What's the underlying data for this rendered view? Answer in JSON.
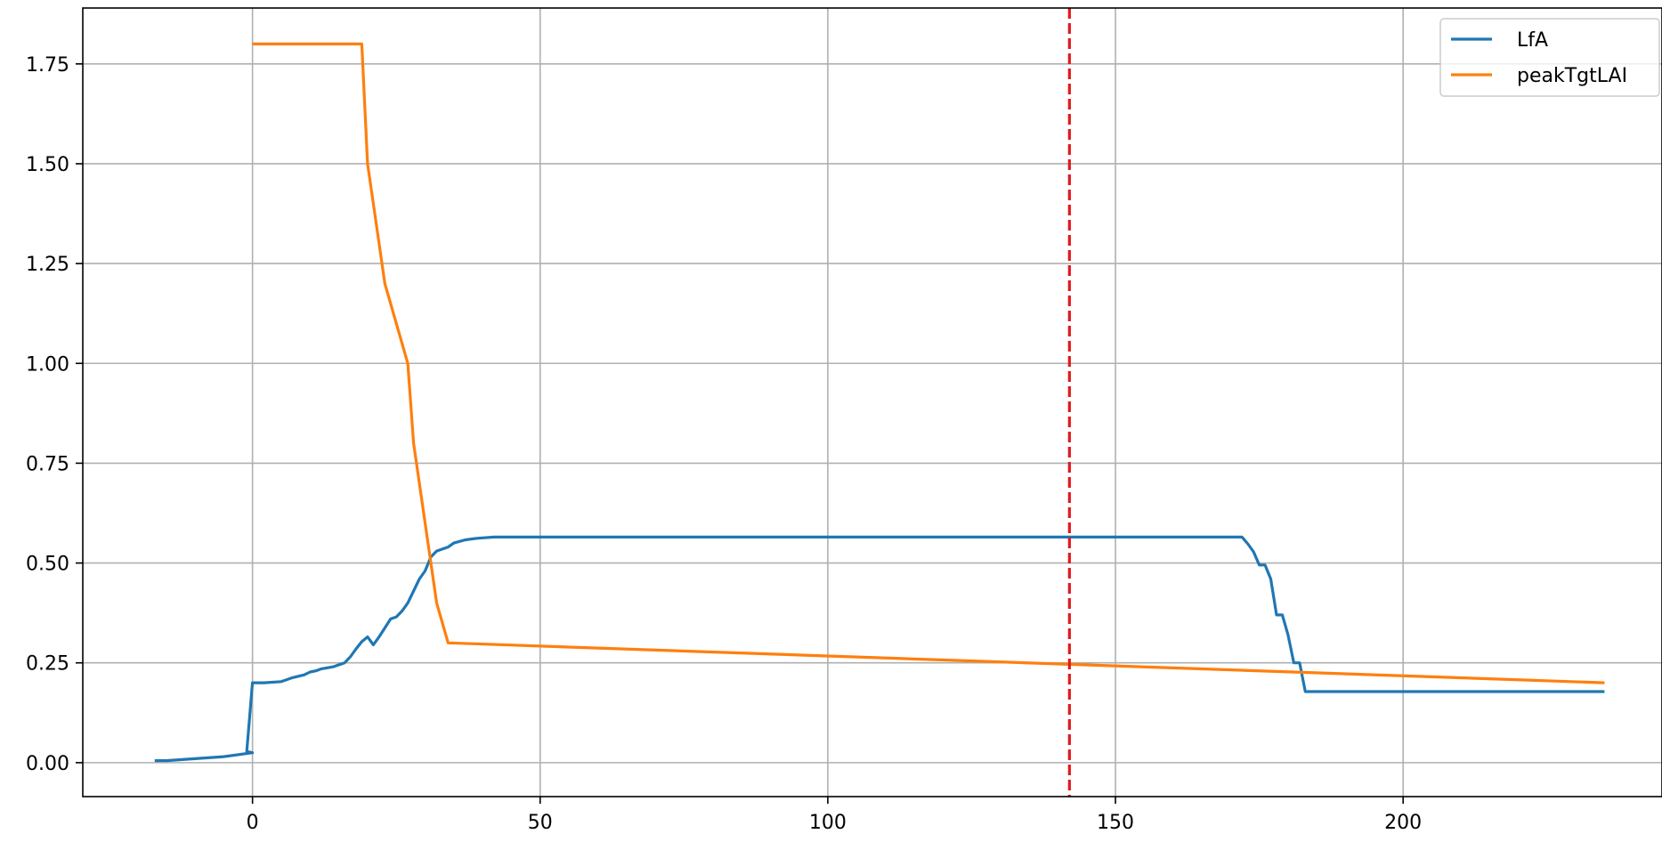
{
  "chart_data": {
    "type": "line",
    "title": "",
    "xlabel": "",
    "ylabel": "",
    "xlim": [
      -29.5,
      245
    ],
    "ylim": [
      -0.085,
      1.89
    ],
    "xticks": [
      0,
      50,
      100,
      150,
      200
    ],
    "yticks": [
      0.0,
      0.25,
      0.5,
      0.75,
      1.0,
      1.25,
      1.5,
      1.75
    ],
    "xtick_labels": [
      "0",
      "50",
      "100",
      "150",
      "200"
    ],
    "ytick_labels": [
      "0.00",
      "0.25",
      "0.50",
      "0.75",
      "1.00",
      "1.25",
      "1.50",
      "1.75"
    ],
    "grid": true,
    "legend_position": "top-right",
    "vline": {
      "x": 142,
      "color": "#e31a1c",
      "style": "dashed"
    },
    "series": [
      {
        "name": "LfA",
        "color": "#1f77b4",
        "points": [
          [
            -17,
            0.005
          ],
          [
            -15,
            0.005
          ],
          [
            -10,
            0.01
          ],
          [
            -5,
            0.015
          ],
          [
            0,
            0.025
          ],
          [
            -1,
            0.028
          ],
          [
            0,
            0.2
          ],
          [
            2,
            0.2
          ],
          [
            5,
            0.203
          ],
          [
            7,
            0.213
          ],
          [
            9,
            0.22
          ],
          [
            10,
            0.227
          ],
          [
            11,
            0.23
          ],
          [
            12,
            0.235
          ],
          [
            14,
            0.24
          ],
          [
            16,
            0.25
          ],
          [
            17,
            0.265
          ],
          [
            18,
            0.285
          ],
          [
            19,
            0.303
          ],
          [
            20,
            0.315
          ],
          [
            21,
            0.295
          ],
          [
            22,
            0.315
          ],
          [
            24,
            0.36
          ],
          [
            25,
            0.365
          ],
          [
            26,
            0.38
          ],
          [
            27,
            0.4
          ],
          [
            28,
            0.43
          ],
          [
            29,
            0.46
          ],
          [
            30,
            0.48
          ],
          [
            31,
            0.515
          ],
          [
            32,
            0.53
          ],
          [
            33,
            0.535
          ],
          [
            34,
            0.54
          ],
          [
            35,
            0.55
          ],
          [
            37,
            0.558
          ],
          [
            39,
            0.562
          ],
          [
            42,
            0.565
          ],
          [
            50,
            0.565
          ],
          [
            100,
            0.565
          ],
          [
            150,
            0.565
          ],
          [
            172,
            0.565
          ],
          [
            173,
            0.548
          ],
          [
            174,
            0.528
          ],
          [
            175,
            0.495
          ],
          [
            176,
            0.495
          ],
          [
            177,
            0.46
          ],
          [
            178,
            0.37
          ],
          [
            179,
            0.37
          ],
          [
            180,
            0.32
          ],
          [
            181,
            0.25
          ],
          [
            182,
            0.25
          ],
          [
            183,
            0.178
          ],
          [
            200,
            0.178
          ],
          [
            235,
            0.178
          ]
        ]
      },
      {
        "name": "peakTgtLAI",
        "color": "#ff7f0e",
        "points": [
          [
            0,
            1.8
          ],
          [
            19,
            1.8
          ],
          [
            20,
            1.5
          ],
          [
            21,
            1.4
          ],
          [
            23,
            1.2
          ],
          [
            27,
            1.0
          ],
          [
            28,
            0.8
          ],
          [
            32,
            0.4
          ],
          [
            34,
            0.3
          ],
          [
            235,
            0.2
          ]
        ]
      }
    ]
  }
}
